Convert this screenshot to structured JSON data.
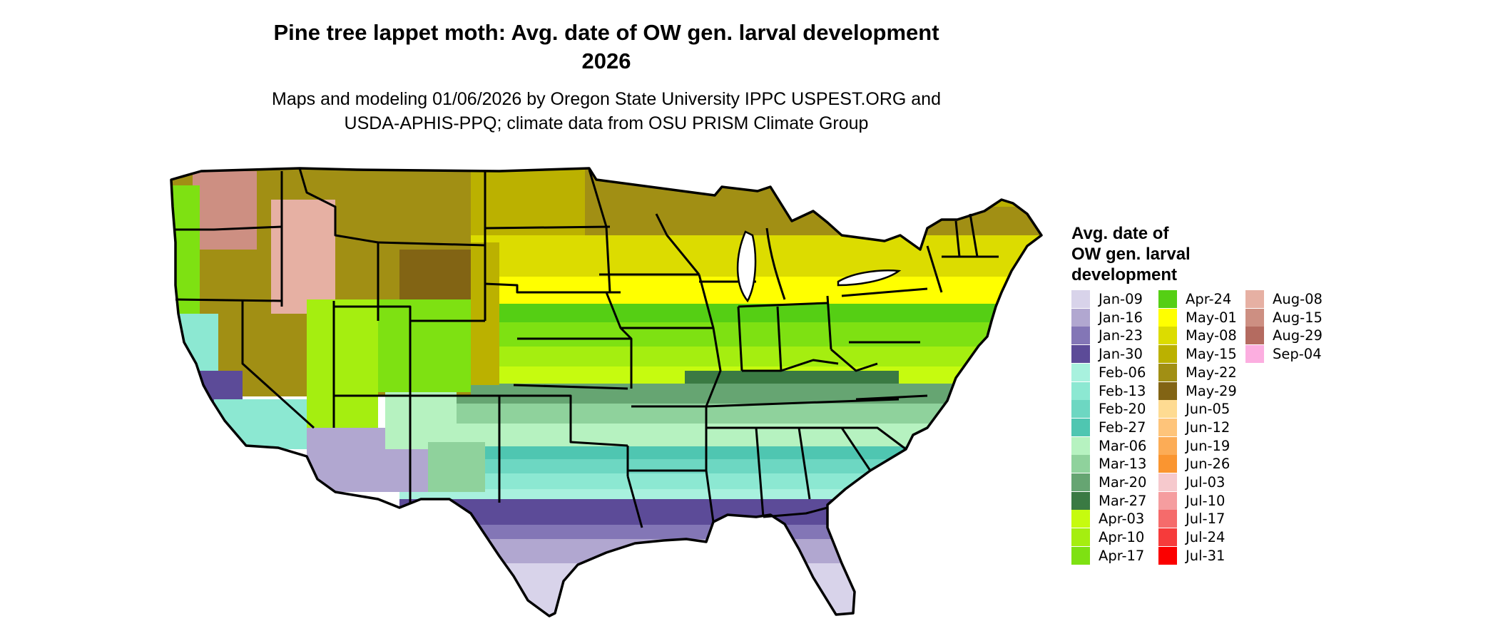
{
  "title": {
    "line1": "Pine tree lappet moth: Avg. date of OW gen. larval development",
    "line2": "2026"
  },
  "subtitle": {
    "line1": "Maps and modeling 01/06/2026 by Oregon State University IPPC USPEST.ORG and",
    "line2": "USDA-APHIS-PPQ; climate data from OSU PRISM Climate Group"
  },
  "legend": {
    "title_lines": [
      "Avg. date of",
      "OW gen. larval",
      "development"
    ],
    "items": [
      {
        "label": "Jan-09",
        "color": "#d8d3ea"
      },
      {
        "label": "Jan-16",
        "color": "#b1a7d0"
      },
      {
        "label": "Jan-23",
        "color": "#8376b6"
      },
      {
        "label": "Jan-30",
        "color": "#5c4b98"
      },
      {
        "label": "Feb-06",
        "color": "#a8f1de"
      },
      {
        "label": "Feb-13",
        "color": "#8ce8d2"
      },
      {
        "label": "Feb-20",
        "color": "#6dd7c2"
      },
      {
        "label": "Feb-27",
        "color": "#4fc6b1"
      },
      {
        "label": "Mar-06",
        "color": "#b6f2c0"
      },
      {
        "label": "Mar-13",
        "color": "#8fd29c"
      },
      {
        "label": "Mar-20",
        "color": "#66a572"
      },
      {
        "label": "Mar-27",
        "color": "#3a7a43"
      },
      {
        "label": "Apr-03",
        "color": "#c6fb0f"
      },
      {
        "label": "Apr-10",
        "color": "#a5ee10"
      },
      {
        "label": "Apr-17",
        "color": "#7ee112"
      },
      {
        "label": "Apr-24",
        "color": "#55cf14"
      },
      {
        "label": "May-01",
        "color": "#ffff00"
      },
      {
        "label": "May-08",
        "color": "#dcdc00"
      },
      {
        "label": "May-15",
        "color": "#bbb100"
      },
      {
        "label": "May-22",
        "color": "#a18f14"
      },
      {
        "label": "May-29",
        "color": "#826414"
      },
      {
        "label": "Jun-05",
        "color": "#fedb92"
      },
      {
        "label": "Jun-12",
        "color": "#fec47a"
      },
      {
        "label": "Jun-19",
        "color": "#fcac56"
      },
      {
        "label": "Jun-26",
        "color": "#fa9530"
      },
      {
        "label": "Jul-03",
        "color": "#f6c9cd"
      },
      {
        "label": "Jul-10",
        "color": "#f59d9f"
      },
      {
        "label": "Jul-17",
        "color": "#f56b6b"
      },
      {
        "label": "Jul-24",
        "color": "#f63b3b"
      },
      {
        "label": "Jul-31",
        "color": "#fb0000"
      },
      {
        "label": "Aug-08",
        "color": "#e6b0a3"
      },
      {
        "label": "Aug-15",
        "color": "#cd8f82"
      },
      {
        "label": "Aug-29",
        "color": "#b46b60"
      },
      {
        "label": "Sep-04",
        "color": "#fcaee0"
      }
    ]
  }
}
